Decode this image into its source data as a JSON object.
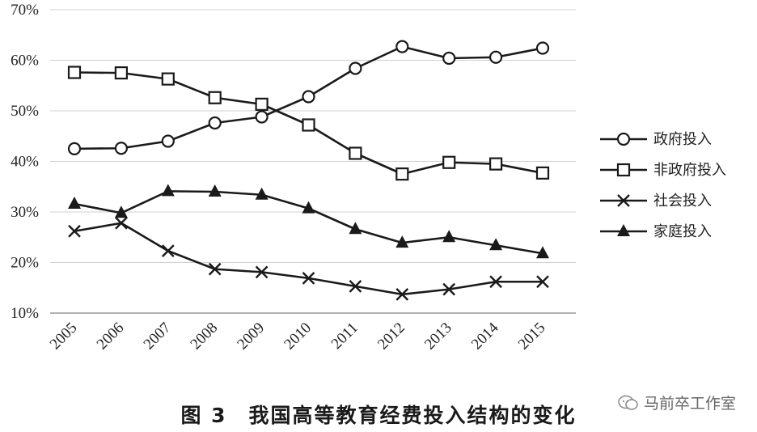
{
  "chart_data": {
    "type": "line",
    "title": "图 3 我国高等教育经费投入结构的变化",
    "x": [
      "2005",
      "2006",
      "2007",
      "2008",
      "2009",
      "2010",
      "2011",
      "2012",
      "2013",
      "2014",
      "2015"
    ],
    "yticks": [
      "10%",
      "20%",
      "30%",
      "40%",
      "50%",
      "60%",
      "70%"
    ],
    "ylim": [
      10,
      70
    ],
    "grid": true,
    "legend_position": "right",
    "series": [
      {
        "name": "政府投入",
        "marker": "circle",
        "values": [
          42.5,
          42.6,
          44.0,
          47.6,
          48.8,
          52.8,
          58.4,
          62.7,
          60.4,
          60.6,
          62.4
        ]
      },
      {
        "name": "非政府投入",
        "marker": "square",
        "values": [
          57.6,
          57.5,
          56.3,
          52.6,
          51.3,
          47.2,
          41.6,
          37.5,
          39.8,
          39.5,
          37.7
        ]
      },
      {
        "name": "社会投入",
        "marker": "x",
        "values": [
          26.2,
          27.8,
          22.3,
          18.7,
          18.1,
          16.9,
          15.3,
          13.7,
          14.7,
          16.2,
          16.2
        ]
      },
      {
        "name": "家庭投入",
        "marker": "triangle",
        "values": [
          31.6,
          29.8,
          34.1,
          34.0,
          33.4,
          30.7,
          26.6,
          23.9,
          25.0,
          23.4,
          21.8
        ]
      }
    ]
  },
  "caption": "图 3　我国高等教育经费投入结构的变化",
  "watermark": "马前卒工作室",
  "colors": {
    "line": "#1a1a1a",
    "grid": "#d0d0d0",
    "axis": "#999999"
  }
}
